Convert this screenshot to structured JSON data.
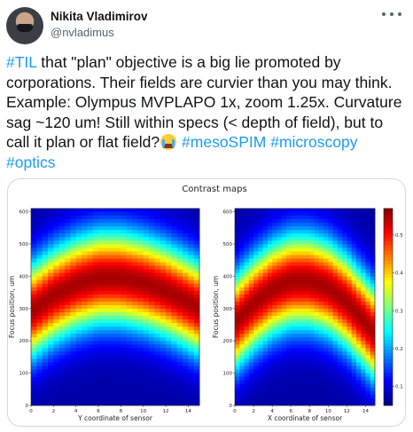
{
  "author": {
    "name": "Nikita Vladimirov",
    "handle": "@nvladimus"
  },
  "tweet": {
    "hashtag_til": "#TIL",
    "text_1": " that \"plan\" objective is a big lie promoted by corporations. Their fields are curvier than you may think. Example: Olympus MVPLAPO 1x, zoom 1.25x. Curvature sag ~120 um! Still within specs (< depth of field), but to call it plan or flat field?",
    "emoji": "loudly-crying-face",
    "hashtag_mesospim": "#mesoSPIM",
    "hashtag_microscopy": "#microscopy",
    "hashtag_optics": "#optics"
  },
  "colors": {
    "hashtag": "#1d9bf0",
    "text": "#0f1419",
    "secondary": "#536471"
  },
  "chart_data": [
    {
      "type": "heatmap",
      "title": "Contrast maps",
      "xlabel": "Y coordinate of sensor",
      "ylabel": "Focus position, um",
      "xlim": [
        0,
        15
      ],
      "ylim": [
        0,
        610
      ],
      "xticks": [
        "0",
        "2",
        "4",
        "6",
        "8",
        "10",
        "12",
        "14"
      ],
      "yticks": [
        "0",
        "100",
        "200",
        "300",
        "400",
        "500",
        "600"
      ],
      "colormap": "jet",
      "peak_ridge": {
        "x": [
          0,
          2,
          4,
          6,
          8,
          10,
          12,
          14,
          15
        ],
        "focus_um": [
          290,
          340,
          375,
          395,
          395,
          380,
          355,
          320,
          300
        ]
      },
      "peak_value": 0.55
    },
    {
      "type": "heatmap",
      "xlabel": "X coordinate of sensor",
      "ylabel": "Focus position, um",
      "xlim": [
        0,
        15
      ],
      "ylim": [
        0,
        610
      ],
      "xticks": [
        "0",
        "2",
        "4",
        "6",
        "8",
        "10",
        "12",
        "14"
      ],
      "yticks": [
        "0",
        "100",
        "200",
        "300",
        "400",
        "500",
        "600"
      ],
      "colormap": "jet",
      "peak_ridge": {
        "x": [
          0,
          2,
          4,
          6,
          8,
          10,
          12,
          14,
          15
        ],
        "focus_um": [
          255,
          315,
          360,
          385,
          385,
          365,
          320,
          255,
          220
        ]
      },
      "peak_value": 0.55
    }
  ],
  "colorbar": {
    "ticks": [
      "0.1",
      "0.2",
      "0.3",
      "0.4",
      "0.5"
    ],
    "values": [
      0.1,
      0.2,
      0.3,
      0.4,
      0.5
    ],
    "vmin": 0.05,
    "vmax": 0.57
  }
}
